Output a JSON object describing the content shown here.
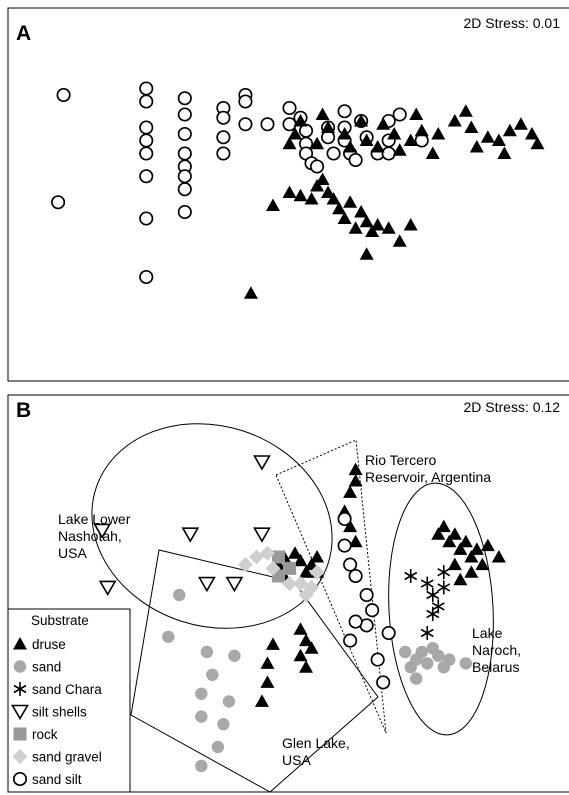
{
  "chart_data": [
    {
      "type": "scatter",
      "panel": "A",
      "stress_text": "2D Stress: 0.01",
      "xlim": [
        0,
        100
      ],
      "ylim": [
        0,
        100
      ],
      "series": [
        {
          "marker": "open-circle",
          "points": [
            [
              9,
              80
            ],
            [
              8,
              47
            ],
            [
              24,
              82
            ],
            [
              24,
              78
            ],
            [
              24,
              70
            ],
            [
              24,
              66
            ],
            [
              24,
              62
            ],
            [
              24,
              55
            ],
            [
              24,
              42
            ],
            [
              24,
              24
            ],
            [
              31,
              79
            ],
            [
              31,
              74
            ],
            [
              31,
              68
            ],
            [
              31,
              62
            ],
            [
              31,
              58
            ],
            [
              31,
              55
            ],
            [
              31,
              51
            ],
            [
              31,
              44
            ],
            [
              38,
              76
            ],
            [
              38,
              73
            ],
            [
              38,
              67
            ],
            [
              38,
              62
            ],
            [
              42,
              80
            ],
            [
              42,
              78
            ],
            [
              42,
              71
            ],
            [
              46,
              71
            ],
            [
              50,
              76
            ],
            [
              50,
              71
            ],
            [
              52,
              73
            ],
            [
              53,
              69
            ],
            [
              53,
              65
            ],
            [
              53,
              62
            ],
            [
              54,
              59
            ],
            [
              55,
              58
            ],
            [
              57,
              70
            ],
            [
              57,
              67
            ],
            [
              58,
              62
            ],
            [
              60,
              75
            ],
            [
              60,
              70
            ],
            [
              60,
              66
            ],
            [
              61,
              62
            ],
            [
              62,
              60
            ],
            [
              63,
              72
            ],
            [
              64,
              67
            ],
            [
              66,
              62
            ],
            [
              68,
              72
            ],
            [
              68,
              66
            ],
            [
              68,
              62
            ],
            [
              70,
              74
            ],
            [
              74,
              66
            ]
          ]
        },
        {
          "marker": "filled-triangle",
          "points": [
            [
              50,
              65
            ],
            [
              51,
              68
            ],
            [
              52,
              72
            ],
            [
              55,
              65
            ],
            [
              56,
              74
            ],
            [
              57,
              70
            ],
            [
              60,
              68
            ],
            [
              61,
              64
            ],
            [
              63,
              72
            ],
            [
              64,
              66
            ],
            [
              66,
              64
            ],
            [
              67,
              71
            ],
            [
              69,
              68
            ],
            [
              70,
              63
            ],
            [
              72,
              66
            ],
            [
              73,
              74
            ],
            [
              74,
              69
            ],
            [
              76,
              62
            ],
            [
              77,
              68
            ],
            [
              80,
              72
            ],
            [
              82,
              75
            ],
            [
              83,
              70
            ],
            [
              84,
              64
            ],
            [
              86,
              67
            ],
            [
              88,
              66
            ],
            [
              89,
              62
            ],
            [
              90,
              69
            ],
            [
              92,
              71
            ],
            [
              94,
              68
            ],
            [
              95,
              65
            ],
            [
              47,
              46
            ],
            [
              50,
              50
            ],
            [
              52,
              49
            ],
            [
              54,
              48
            ],
            [
              55,
              52
            ],
            [
              56,
              54
            ],
            [
              57,
              50
            ],
            [
              58,
              48
            ],
            [
              59,
              45
            ],
            [
              60,
              42
            ],
            [
              61,
              47
            ],
            [
              62,
              39
            ],
            [
              63,
              44
            ],
            [
              64,
              41
            ],
            [
              65,
              38
            ],
            [
              66,
              40
            ],
            [
              68,
              39
            ],
            [
              70,
              35
            ],
            [
              72,
              40
            ],
            [
              64,
              31
            ],
            [
              43,
              19
            ]
          ]
        }
      ]
    },
    {
      "type": "scatter",
      "panel": "B",
      "stress_text": "2D Stress: 0.12",
      "xlim": [
        0,
        100
      ],
      "ylim": [
        0,
        100
      ],
      "region_labels": [
        {
          "id": "lake-lower-nashotah",
          "lines": [
            "Lake Lower",
            "Nashotah,",
            "USA"
          ]
        },
        {
          "id": "rio-tercero",
          "lines": [
            "Rio Tercero",
            "Reservoir, Argentina"
          ]
        },
        {
          "id": "lake-naroch",
          "lines": [
            "Lake",
            "Naroch,",
            "Belarus"
          ]
        },
        {
          "id": "glen-lake",
          "lines": [
            "Glen Lake,",
            "USA"
          ]
        }
      ],
      "legend": {
        "title": "Substrate",
        "entries": [
          {
            "label": "druse",
            "marker": "filled-triangle"
          },
          {
            "label": "sand",
            "marker": "filled-gray-circle"
          },
          {
            "label": "sand Chara",
            "marker": "asterisk"
          },
          {
            "label": "silt shells",
            "marker": "open-triangle-down"
          },
          {
            "label": "rock",
            "marker": "gray-square"
          },
          {
            "label": "sand gravel",
            "marker": "gray-diamond"
          },
          {
            "label": "sand silt",
            "marker": "open-circle"
          }
        ]
      },
      "series": [
        {
          "name": "druse",
          "marker": "filled-triangle",
          "points": [
            [
              62,
              83
            ],
            [
              62,
              80
            ],
            [
              61,
              77
            ],
            [
              60,
              72
            ],
            [
              61,
              68
            ],
            [
              62,
              64
            ],
            [
              48,
              58
            ],
            [
              49,
              60
            ],
            [
              50,
              57
            ],
            [
              51,
              61
            ],
            [
              52,
              59
            ],
            [
              53,
              56
            ],
            [
              54,
              58
            ],
            [
              55,
              60
            ],
            [
              49,
              55
            ],
            [
              55,
              56
            ],
            [
              77,
              66
            ],
            [
              78,
              68
            ],
            [
              79,
              64
            ],
            [
              80,
              66
            ],
            [
              81,
              62
            ],
            [
              82,
              64
            ],
            [
              83,
              60
            ],
            [
              84,
              62
            ],
            [
              85,
              58
            ],
            [
              80,
              58
            ],
            [
              83,
              56
            ],
            [
              86,
              63
            ],
            [
              88,
              60
            ],
            [
              81,
              54
            ],
            [
              52,
              41
            ],
            [
              53,
              38
            ],
            [
              54,
              36
            ],
            [
              52,
              34
            ],
            [
              53,
              31
            ],
            [
              47,
              37
            ],
            [
              46,
              32
            ],
            [
              46,
              27
            ],
            [
              45,
              22
            ]
          ]
        },
        {
          "name": "sand",
          "marker": "filled-gray-circle",
          "points": [
            [
              30,
              50
            ],
            [
              28,
              39
            ],
            [
              35,
              35
            ],
            [
              40,
              34
            ],
            [
              36,
              29
            ],
            [
              34,
              24
            ],
            [
              39,
              22
            ],
            [
              34,
              18
            ],
            [
              38,
              16
            ],
            [
              37,
              10
            ],
            [
              34,
              5
            ],
            [
              71,
              35
            ],
            [
              72,
              31
            ],
            [
              73,
              33
            ],
            [
              74,
              35
            ],
            [
              75,
              32
            ],
            [
              76,
              36
            ],
            [
              77,
              34
            ],
            [
              78,
              31
            ],
            [
              73,
              28
            ],
            [
              79,
              33
            ],
            [
              82,
              32
            ]
          ]
        },
        {
          "name": "sand Chara",
          "marker": "asterisk",
          "points": [
            [
              72,
              55
            ],
            [
              75,
              53
            ],
            [
              76,
              50
            ],
            [
              77,
              47
            ],
            [
              78,
              56
            ],
            [
              76,
              45
            ],
            [
              75,
              40
            ],
            [
              78,
              52
            ]
          ]
        },
        {
          "name": "silt shells",
          "marker": "open-triangle-down",
          "points": [
            [
              45,
              85
            ],
            [
              16,
              67
            ],
            [
              32,
              66
            ],
            [
              45,
              66
            ],
            [
              17,
              52
            ],
            [
              35,
              53
            ],
            [
              40,
              53
            ]
          ]
        },
        {
          "name": "rock",
          "marker": "gray-square",
          "points": [
            [
              48,
              60
            ],
            [
              48,
              55
            ],
            [
              50,
              57
            ]
          ]
        },
        {
          "name": "sand gravel",
          "marker": "gray-diamond",
          "points": [
            [
              42,
              58
            ],
            [
              44,
              60
            ],
            [
              46,
              61
            ],
            [
              47,
              57
            ],
            [
              52,
              53
            ],
            [
              53,
              50
            ],
            [
              55,
              56
            ],
            [
              54,
              52
            ],
            [
              50,
              53
            ]
          ]
        },
        {
          "name": "sand silt",
          "marker": "open-circle",
          "points": [
            [
              60,
              70
            ],
            [
              60,
              63
            ],
            [
              61,
              58
            ],
            [
              62,
              55
            ],
            [
              64,
              50
            ],
            [
              65,
              46
            ],
            [
              64,
              42
            ],
            [
              62,
              43
            ],
            [
              61,
              38
            ],
            [
              68,
              40
            ],
            [
              66,
              33
            ],
            [
              67,
              27
            ]
          ]
        }
      ]
    }
  ]
}
